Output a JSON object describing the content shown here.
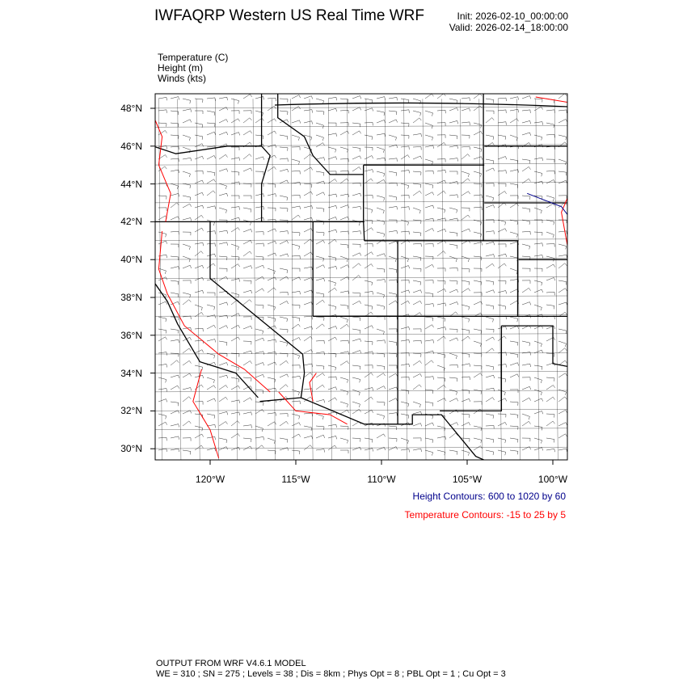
{
  "header": {
    "title": "IWFAQRP Western US Real Time WRF",
    "init": "Init: 2026-02-10_00:00:00",
    "valid": "Valid: 2026-02-14_18:00:00"
  },
  "fields": [
    "Temperature   (C)",
    "Height   (m)",
    "Winds   (kts)"
  ],
  "map": {
    "lat_ticks": [
      "48°N",
      "46°N",
      "44°N",
      "42°N",
      "40°N",
      "38°N",
      "36°N",
      "34°N",
      "32°N",
      "30°N"
    ],
    "lon_ticks": [
      "120°W",
      "115°W",
      "110°W",
      "105°W",
      "100°W"
    ],
    "colors": {
      "height": "#00008b",
      "temperature": "#ff0000",
      "borders": "#000000"
    }
  },
  "legend": {
    "height": "Height Contours: 600 to 1020 by 60",
    "temperature": "Temperature Contours: -15 to 25 by 5"
  },
  "footer": {
    "line1": "OUTPUT FROM WRF V4.6.1 MODEL",
    "line2": "WE = 310 ; SN = 275 ; Levels = 38 ; Dis = 8km ; Phys Opt = 8 ; PBL Opt = 1 ; Cu Opt = 3"
  }
}
